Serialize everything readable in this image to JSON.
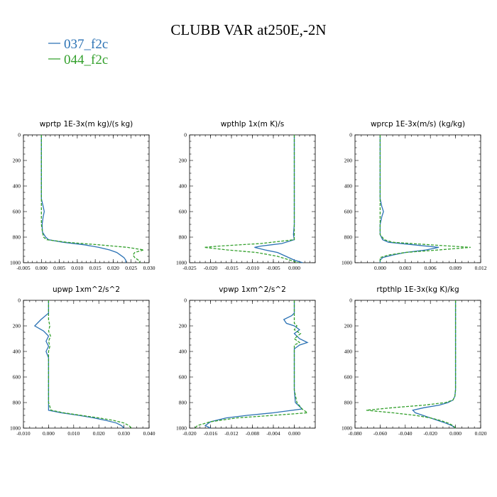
{
  "figure": {
    "title": "CLUBB VAR at250E,-2N",
    "legend": [
      {
        "label": "037_f2c",
        "color": "#2b72b4",
        "dash": "solid"
      },
      {
        "label": "044_f2c",
        "color": "#33a02c",
        "dash": "dashed"
      }
    ]
  },
  "chart_data": [
    {
      "type": "line",
      "title": "wprtp  1E-3x(m kg)/(s kg)",
      "xlim": [
        -0.005,
        0.03
      ],
      "ylim": [
        1000,
        0
      ],
      "grid": false,
      "xticks": [
        "-0.005",
        "0.000",
        "0.005",
        "0.010",
        "0.015",
        "0.020",
        "0.025",
        "0.030"
      ],
      "yticks": [
        "0",
        "200",
        "400",
        "600",
        "800",
        "1000"
      ],
      "y": [
        0,
        100,
        200,
        300,
        400,
        500,
        560,
        600,
        640,
        700,
        760,
        800,
        820,
        840,
        860,
        880,
        900,
        920,
        940,
        960,
        980,
        1000
      ],
      "series": [
        {
          "name": "037_f2c",
          "values": [
            0.0,
            0.0,
            0.0,
            0.0,
            0.0,
            0.0,
            0.0005,
            0.0008,
            0.0005,
            0.0002,
            0.0003,
            0.0012,
            0.002,
            0.006,
            0.012,
            0.016,
            0.019,
            0.021,
            0.022,
            0.023,
            0.0235,
            0.0235
          ]
        },
        {
          "name": "044_f2c",
          "values": [
            0.0,
            0.0,
            0.0,
            0.0,
            0.0,
            0.0,
            0.0,
            0.0,
            0.0,
            0.0,
            0.0003,
            0.0006,
            0.0015,
            0.007,
            0.016,
            0.024,
            0.0285,
            0.026,
            0.0255,
            0.026,
            0.027,
            0.0275
          ]
        }
      ]
    },
    {
      "type": "line",
      "title": "wpthlp  1x(m K)/s",
      "xlim": [
        -0.025,
        0.005
      ],
      "ylim": [
        1000,
        0
      ],
      "grid": false,
      "xticks": [
        "-0.025",
        "-0.020",
        "-0.015",
        "-0.010",
        "-0.005",
        "0.000"
      ],
      "yticks": [
        "0",
        "200",
        "400",
        "600",
        "800",
        "1000"
      ],
      "y": [
        0,
        100,
        200,
        300,
        400,
        500,
        600,
        700,
        780,
        820,
        850,
        870,
        880,
        900,
        920,
        950,
        980,
        1000
      ],
      "series": [
        {
          "name": "037_f2c",
          "values": [
            0.0,
            0.0,
            0.0,
            0.0,
            0.0,
            0.0,
            0.0,
            0.0,
            -0.0002,
            0.0,
            -0.003,
            -0.008,
            -0.0095,
            -0.007,
            -0.004,
            -0.002,
            0.0,
            0.002
          ]
        },
        {
          "name": "044_f2c",
          "values": [
            0.0,
            0.0,
            0.0,
            0.0,
            0.0,
            0.0,
            0.0,
            0.0,
            0.0,
            0.0,
            -0.008,
            -0.018,
            -0.0215,
            -0.016,
            -0.009,
            -0.004,
            -0.001,
            0.001
          ]
        }
      ]
    },
    {
      "type": "line",
      "title": "wprcp  1E-3x(m/s) (kg/kg)",
      "xlim": [
        -0.003,
        0.012
      ],
      "ylim": [
        1000,
        0
      ],
      "grid": false,
      "xticks": [
        "0.000",
        "0.003",
        "0.006",
        "0.009",
        "0.012"
      ],
      "yticks": [
        "0",
        "200",
        "400",
        "600",
        "800",
        "1000"
      ],
      "y": [
        0,
        100,
        200,
        300,
        400,
        500,
        560,
        600,
        640,
        700,
        780,
        820,
        840,
        860,
        880,
        900,
        920,
        940,
        960,
        980,
        1000
      ],
      "series": [
        {
          "name": "037_f2c",
          "values": [
            0.0,
            0.0,
            0.0,
            0.0,
            0.0,
            0.0,
            0.0002,
            0.0004,
            0.0002,
            0.0,
            0.0,
            0.0003,
            0.001,
            0.004,
            0.007,
            0.0055,
            0.003,
            0.0015,
            0.0003,
            0.0,
            0.0
          ]
        },
        {
          "name": "044_f2c",
          "values": [
            0.0,
            0.0,
            0.0,
            0.0,
            0.0,
            0.0,
            0.0,
            0.0,
            0.0,
            0.0,
            0.0,
            0.0005,
            0.0015,
            0.006,
            0.0108,
            0.007,
            0.003,
            0.001,
            0.0,
            0.0,
            0.0
          ]
        }
      ]
    },
    {
      "type": "line",
      "title": "upwp  1xm^2/s^2",
      "xlim": [
        -0.01,
        0.04
      ],
      "ylim": [
        1000,
        0
      ],
      "grid": false,
      "xticks": [
        "-0.010",
        "0.000",
        "0.010",
        "0.020",
        "0.030",
        "0.040"
      ],
      "yticks": [
        "0",
        "200",
        "400",
        "600",
        "800",
        "1000"
      ],
      "y": [
        0,
        100,
        150,
        200,
        240,
        280,
        320,
        360,
        400,
        450,
        500,
        600,
        700,
        800,
        860,
        880,
        900,
        920,
        940,
        960,
        980,
        1000
      ],
      "series": [
        {
          "name": "037_f2c",
          "values": [
            0.0,
            0.0,
            -0.003,
            -0.0055,
            -0.002,
            0.0,
            -0.001,
            0.0,
            -0.001,
            0.0,
            0.0,
            0.0,
            0.0,
            0.0,
            0.0,
            0.005,
            0.012,
            0.018,
            0.023,
            0.027,
            0.029,
            0.03
          ]
        },
        {
          "name": "044_f2c",
          "values": [
            0.0,
            0.0,
            0.0,
            0.0005,
            0.0,
            0.0008,
            0.0,
            0.0005,
            0.0,
            0.0,
            0.0,
            0.0,
            0.0,
            0.0,
            0.001,
            0.006,
            0.013,
            0.02,
            0.026,
            0.03,
            0.032,
            0.033
          ]
        }
      ]
    },
    {
      "type": "line",
      "title": "vpwp  1xm^2/s^2",
      "xlim": [
        -0.02,
        0.004
      ],
      "ylim": [
        1000,
        0
      ],
      "grid": false,
      "xticks": [
        "-0.020",
        "-0.016",
        "-0.012",
        "-0.008",
        "-0.004",
        "0.000"
      ],
      "yticks": [
        "0",
        "200",
        "400",
        "600",
        "800",
        "1000"
      ],
      "y": [
        0,
        100,
        120,
        150,
        180,
        200,
        230,
        260,
        300,
        330,
        350,
        380,
        400,
        500,
        600,
        700,
        800,
        850,
        880,
        900,
        920,
        950,
        980,
        1000
      ],
      "series": [
        {
          "name": "037_f2c",
          "values": [
            0.0,
            0.0,
            -0.0005,
            -0.002,
            -0.0015,
            0.0,
            0.001,
            0.0,
            0.001,
            0.0025,
            0.001,
            0.0,
            0.0,
            0.0,
            0.0,
            0.0,
            0.0002,
            0.0015,
            -0.004,
            -0.009,
            -0.013,
            -0.016,
            -0.017,
            -0.016
          ]
        },
        {
          "name": "044_f2c",
          "values": [
            0.0,
            0.0,
            0.0,
            0.0,
            0.0,
            0.0005,
            0.0,
            0.0012,
            0.0,
            0.001,
            0.0,
            0.0,
            0.0,
            0.0,
            0.0,
            0.0,
            0.0005,
            0.0015,
            0.0025,
            -0.004,
            -0.011,
            -0.016,
            -0.0185,
            -0.019
          ]
        }
      ]
    },
    {
      "type": "line",
      "title": "rtpthlp  1E-3x(kg K)/kg",
      "xlim": [
        -0.08,
        0.02
      ],
      "ylim": [
        1000,
        0
      ],
      "grid": false,
      "xticks": [
        "-0.080",
        "-0.060",
        "-0.040",
        "-0.020",
        "0.000",
        "0.020"
      ],
      "yticks": [
        "0",
        "200",
        "400",
        "600",
        "800",
        "1000"
      ],
      "y": [
        0,
        100,
        200,
        300,
        400,
        500,
        600,
        700,
        750,
        780,
        800,
        820,
        840,
        860,
        880,
        900,
        920,
        940,
        960,
        980,
        1000
      ],
      "series": [
        {
          "name": "037_f2c",
          "values": [
            0.0,
            0.0,
            0.0,
            0.0,
            0.0,
            0.0,
            0.0,
            0.0,
            -0.0005,
            -0.002,
            -0.006,
            -0.013,
            -0.025,
            -0.034,
            -0.032,
            -0.026,
            -0.02,
            -0.014,
            -0.008,
            -0.003,
            0.0
          ]
        },
        {
          "name": "044_f2c",
          "values": [
            0.0,
            0.0,
            0.0,
            0.0,
            0.0,
            0.0,
            0.0,
            0.0,
            -0.0005,
            -0.002,
            -0.008,
            -0.025,
            -0.05,
            -0.071,
            -0.05,
            -0.032,
            -0.02,
            -0.012,
            -0.006,
            -0.002,
            0.0
          ]
        }
      ]
    }
  ]
}
